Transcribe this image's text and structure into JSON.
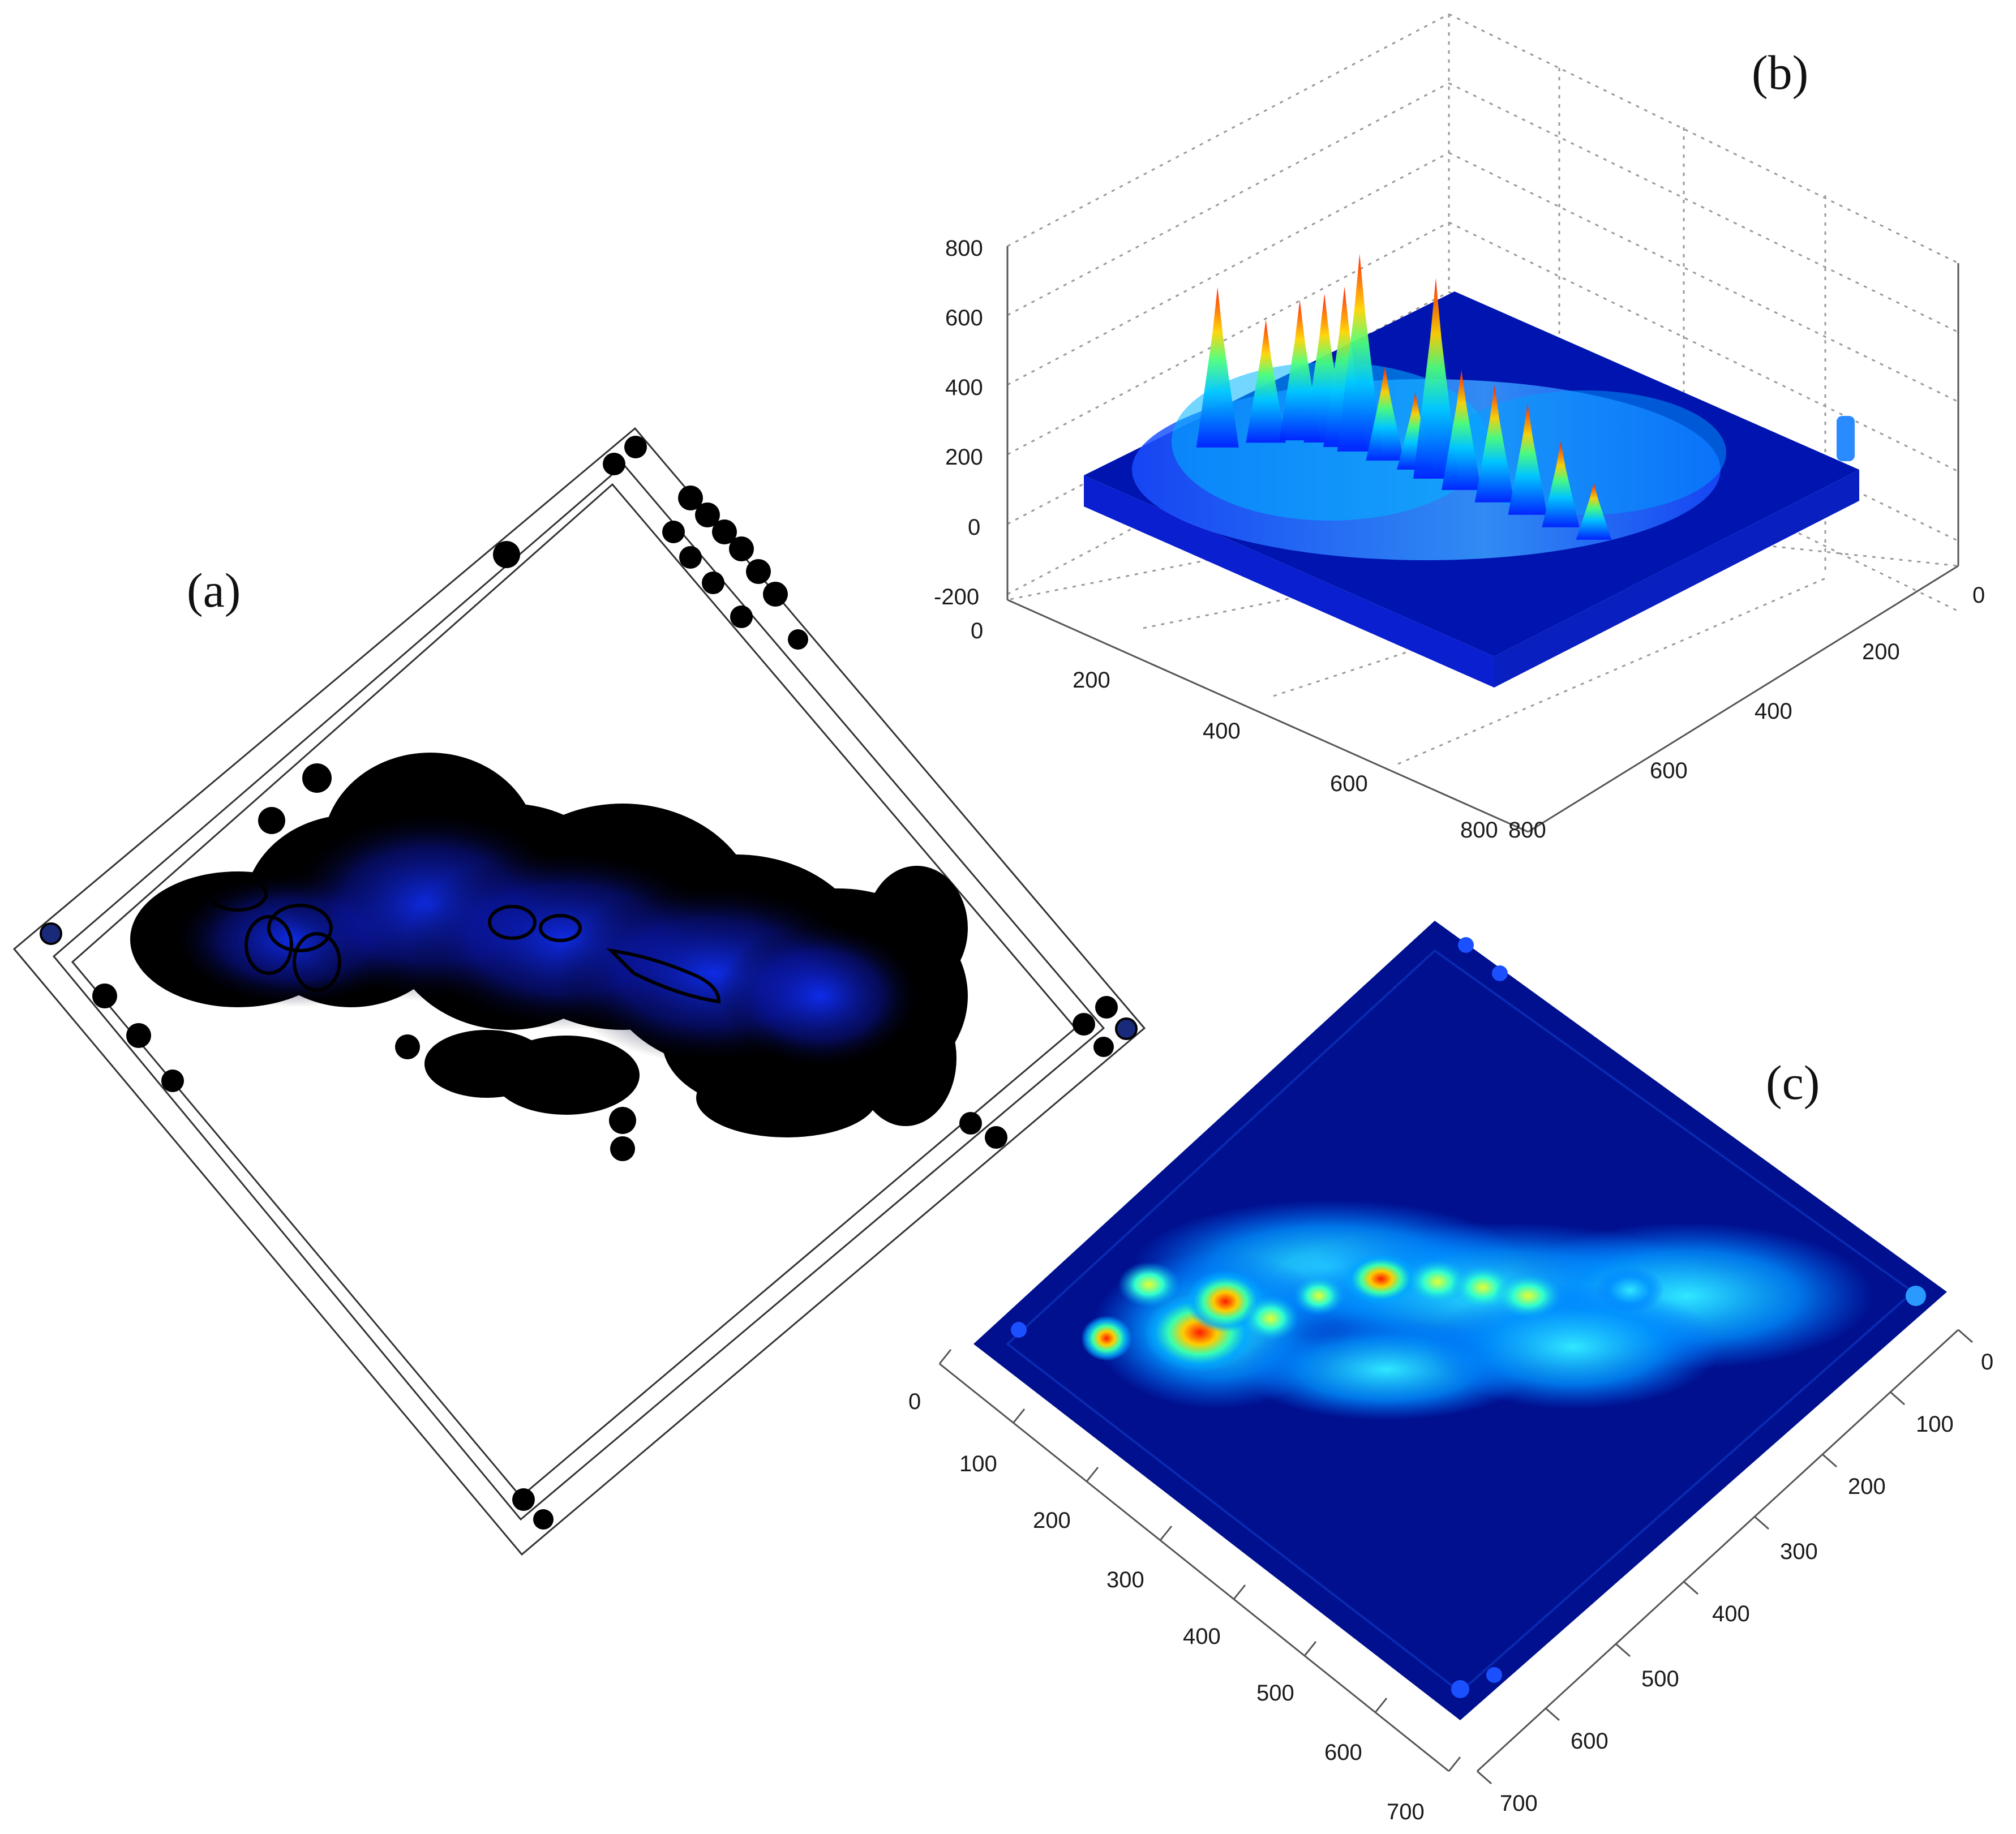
{
  "figure": {
    "panels": [
      {
        "id": "a",
        "label": "(a)"
      },
      {
        "id": "b",
        "label": "(b)"
      },
      {
        "id": "c",
        "label": "(c)"
      }
    ]
  },
  "colors": {
    "background": "#ffffff",
    "blob": "#000000",
    "blob_glow": "#0a1cff",
    "surface_low": "#00008f",
    "surface_mid": "#00c8ff",
    "surface_peak": "#ff1a00",
    "grid": "#8a8a8a"
  },
  "chart_data": [
    {
      "panel": "a",
      "type": "heatmap",
      "title": "",
      "note_kind": "top-view density map with contour lines, rotated square frame"
    },
    {
      "panel": "b",
      "type": "heatmap",
      "subtype": "3d-surface",
      "title": "",
      "axes": {
        "z": {
          "ticks": [
            "800",
            "600",
            "400",
            "200",
            "0",
            "-200"
          ],
          "zlim": [
            -200,
            800
          ]
        },
        "x": {
          "ticks": [
            "0",
            "200",
            "400",
            "600",
            "800"
          ],
          "xlim": [
            0,
            800
          ]
        },
        "y": {
          "ticks": [
            "0",
            "200",
            "400",
            "600",
            "800"
          ],
          "ylim": [
            0,
            800
          ]
        }
      },
      "peaks": [
        {
          "x": 80,
          "y": 200,
          "z": 560
        },
        {
          "x": 120,
          "y": 260,
          "z": 430
        },
        {
          "x": 150,
          "y": 300,
          "z": 490
        },
        {
          "x": 180,
          "y": 320,
          "z": 520
        },
        {
          "x": 210,
          "y": 330,
          "z": 560
        },
        {
          "x": 235,
          "y": 335,
          "z": 690
        },
        {
          "x": 280,
          "y": 340,
          "z": 330
        },
        {
          "x": 330,
          "y": 350,
          "z": 270
        },
        {
          "x": 370,
          "y": 350,
          "z": 700
        },
        {
          "x": 420,
          "y": 350,
          "z": 420
        },
        {
          "x": 480,
          "y": 355,
          "z": 410
        },
        {
          "x": 540,
          "y": 360,
          "z": 390
        },
        {
          "x": 600,
          "y": 365,
          "z": 300
        },
        {
          "x": 660,
          "y": 370,
          "z": 200
        }
      ],
      "grid": true
    },
    {
      "panel": "c",
      "type": "heatmap",
      "title": "",
      "axes": {
        "x": {
          "ticks": [
            "0",
            "100",
            "200",
            "300",
            "400",
            "500",
            "600",
            "700"
          ],
          "xlim": [
            0,
            700
          ]
        },
        "y": {
          "ticks": [
            "0",
            "100",
            "200",
            "300",
            "400",
            "500",
            "600",
            "700"
          ],
          "ylim": [
            0,
            700
          ]
        }
      },
      "hotspots": [
        {
          "x": 60,
          "y": 260,
          "value": 0.95
        },
        {
          "x": 110,
          "y": 255,
          "value": 0.9
        },
        {
          "x": 150,
          "y": 240,
          "value": 0.85
        },
        {
          "x": 130,
          "y": 220,
          "value": 0.8
        },
        {
          "x": 250,
          "y": 230,
          "value": 0.9
        },
        {
          "x": 300,
          "y": 225,
          "value": 0.7
        },
        {
          "x": 340,
          "y": 225,
          "value": 0.65
        },
        {
          "x": 380,
          "y": 230,
          "value": 0.6
        },
        {
          "x": 440,
          "y": 240,
          "value": 0.45
        },
        {
          "x": 510,
          "y": 250,
          "value": 0.4
        }
      ]
    }
  ]
}
